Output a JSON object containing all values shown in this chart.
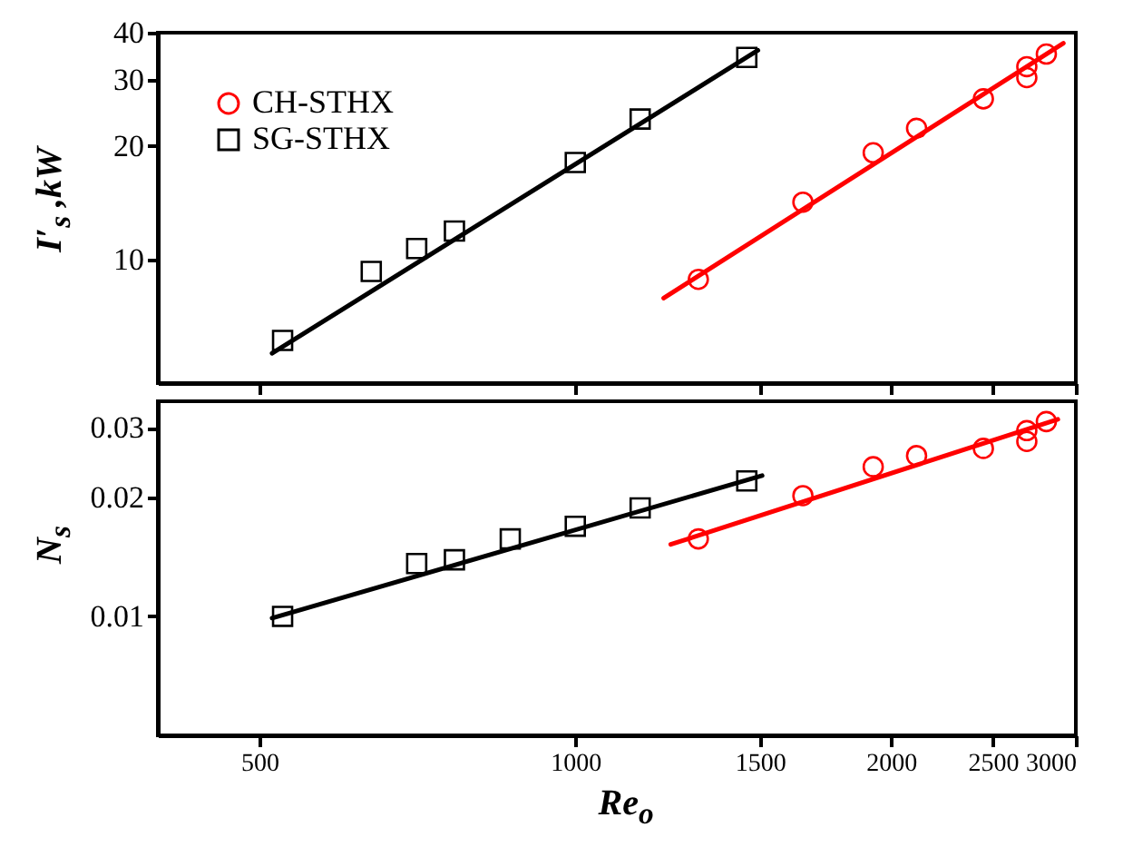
{
  "chart_data": [
    {
      "type": "scatter",
      "ylabel": "I′$_{s}$ ,kW",
      "legend": "top left",
      "tick_labels": "y",
      "grid": false,
      "log": "xy",
      "xlim": [
        400,
        3000
      ],
      "xticks": [
        500,
        1000,
        1500,
        2000,
        2500,
        3000
      ],
      "ylim": [
        4.7,
        40
      ],
      "yticks": [
        10,
        20,
        30,
        40
      ],
      "series": [
        {
          "name": "CH-STHX",
          "color": "#ff0000",
          "marker": "circle",
          "x": [
            1310,
            1648,
            1923,
            2115,
            2449,
            2694,
            2694,
            2812
          ],
          "values": [
            8.86,
            14.2,
            19.2,
            22.3,
            26.7,
            30.4,
            32.5,
            35.1
          ]
        },
        {
          "name": "SG-STHX",
          "color": "#000000",
          "marker": "square",
          "x": [
            526,
            639,
            706,
            767,
            1000,
            1153,
            1457
          ],
          "values": [
            6.1,
            9.3,
            10.7,
            11.9,
            18.1,
            23.6,
            34.4
          ]
        },
        {
          "type": "line",
          "color": "#ff0000",
          "x": [
            1214,
            2919
          ],
          "values": [
            7.9,
            37.5
          ]
        },
        {
          "type": "line",
          "color": "#000000",
          "x": [
            514,
            1493
          ],
          "values": [
            5.64,
            35.9
          ]
        }
      ]
    },
    {
      "type": "scatter",
      "ylabel": "N$_{s}$",
      "xlabel": "Re$_{o}$",
      "grid": false,
      "log": "xy",
      "xlim": [
        400,
        3000
      ],
      "xticks": [
        500,
        1000,
        1500,
        2000,
        2500,
        3000
      ],
      "ylim": [
        0.005,
        0.035
      ],
      "yticks": [
        0.01,
        0.02,
        0.03
      ],
      "series": [
        {
          "color": "#ff0000",
          "marker": "circle",
          "x": [
            1310,
            1648,
            1923,
            2115,
            2449,
            2694,
            2694,
            2812
          ],
          "values": [
            0.0157,
            0.0202,
            0.0239,
            0.0255,
            0.0266,
            0.0277,
            0.0295,
            0.0311
          ]
        },
        {
          "color": "#000000",
          "marker": "square",
          "x": [
            526,
            706,
            767,
            867,
            1000,
            1153,
            1457
          ],
          "values": [
            0.01,
            0.0136,
            0.0139,
            0.0157,
            0.0169,
            0.0188,
            0.022
          ]
        },
        {
          "type": "line",
          "color": "#ff0000",
          "x": [
            1233,
            2884
          ],
          "values": [
            0.0152,
            0.0315
          ]
        },
        {
          "type": "line",
          "color": "#000000",
          "x": [
            514,
            1507
          ],
          "values": [
            0.0099,
            0.0227
          ]
        }
      ]
    }
  ]
}
